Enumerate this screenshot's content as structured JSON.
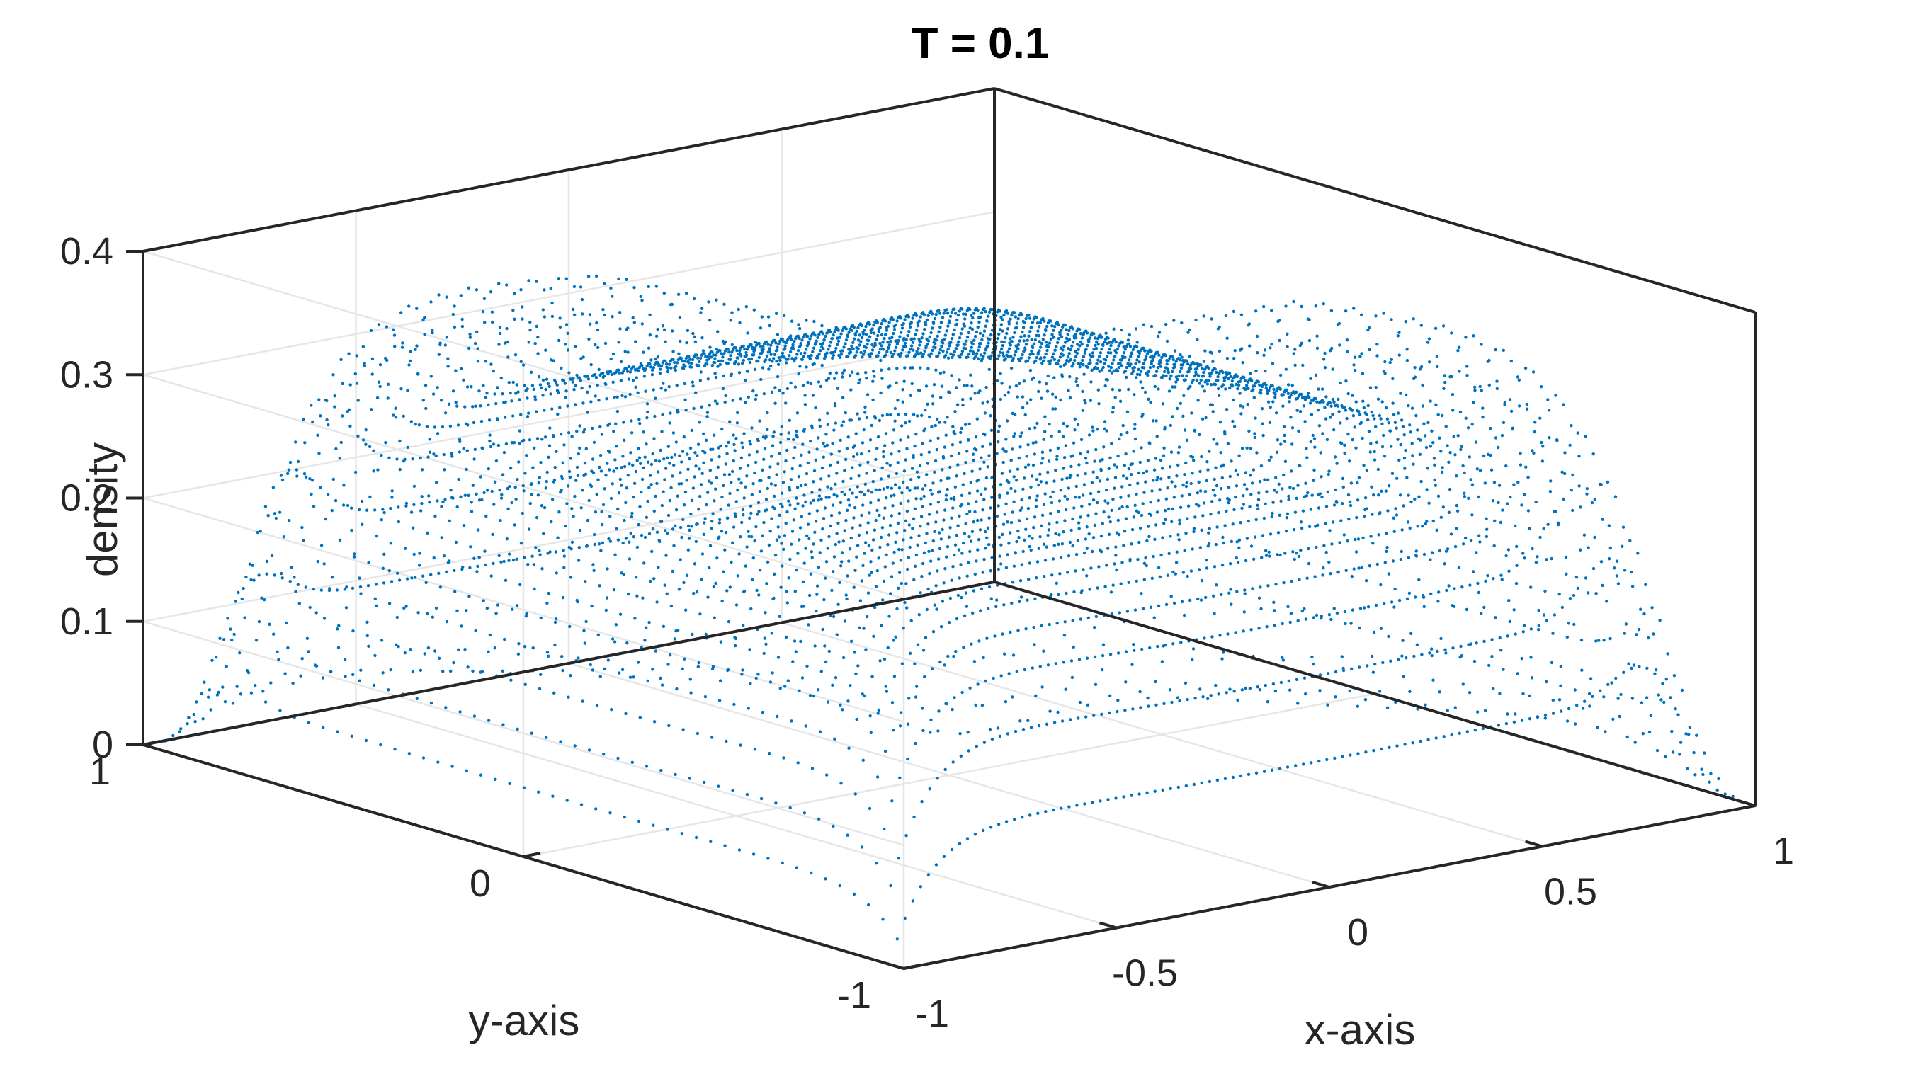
{
  "chart_data": {
    "type": "scatter3d",
    "title": "T = 0.1",
    "xlabel": "x-axis",
    "ylabel": "y-axis",
    "zlabel": "density",
    "xlim": [
      -1,
      1
    ],
    "ylim": [
      -1,
      1
    ],
    "zlim": [
      0,
      0.4
    ],
    "x_ticks": [
      -1,
      -0.5,
      0,
      0.5,
      1
    ],
    "x_tick_labels": [
      "-1",
      "-0.5",
      "0",
      "0.5",
      "1"
    ],
    "y_ticks": [
      -1,
      0,
      1
    ],
    "y_tick_labels": [
      "-1",
      "0",
      "1"
    ],
    "z_ticks": [
      0,
      0.1,
      0.2,
      0.3,
      0.4
    ],
    "z_tick_labels": [
      "0",
      "0.1",
      "0.2",
      "0.3",
      "0.4"
    ],
    "grid": true,
    "marker_color": "#0072bd",
    "surface_description": {
      "plateau_density": 0.3,
      "peak_density": 0.4,
      "dip_along": "x = -y diagonal",
      "boundary_density": 0
    }
  }
}
